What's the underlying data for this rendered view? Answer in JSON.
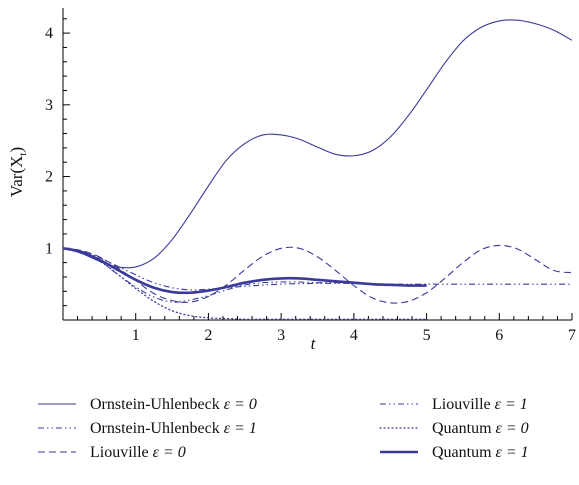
{
  "chart_data": {
    "type": "line",
    "xlabel": "t",
    "ylabel": "Var(X",
    "ylabel_sub": "t",
    "ylabel_close": ")",
    "xlim": [
      0,
      7
    ],
    "ylim": [
      0,
      4.35
    ],
    "xticks": [
      "1",
      "2",
      "3",
      "4",
      "5",
      "6",
      "7"
    ],
    "yticks": [
      "1",
      "2",
      "3",
      "4"
    ],
    "color": "#3a3a9a",
    "series": [
      {
        "name": "Ornstein-Uhlenbeck",
        "eps": "ε = 0",
        "style": "solid-thin",
        "x": [
          0,
          0.25,
          0.5,
          0.75,
          1.0,
          1.25,
          1.5,
          1.75,
          2.0,
          2.25,
          2.5,
          2.75,
          3.0,
          3.25,
          3.5,
          3.75,
          4.0,
          4.25,
          4.5,
          4.75,
          5.0,
          5.25,
          5.5,
          5.75,
          6.0,
          6.25,
          6.5,
          6.75,
          7.0
        ],
        "y": [
          1.0,
          0.93,
          0.82,
          0.74,
          0.74,
          0.86,
          1.12,
          1.48,
          1.87,
          2.23,
          2.46,
          2.58,
          2.58,
          2.52,
          2.41,
          2.31,
          2.29,
          2.36,
          2.55,
          2.85,
          3.21,
          3.58,
          3.89,
          4.08,
          4.17,
          4.18,
          4.13,
          4.04,
          3.9
        ]
      },
      {
        "name": "Ornstein-Uhlenbeck",
        "eps": "ε = 1",
        "style": "dashdotdot",
        "x": [
          0,
          0.25,
          0.5,
          0.75,
          1.0,
          1.25,
          1.5,
          1.75,
          2.0,
          2.5,
          3.0,
          3.5,
          4.0,
          4.5,
          5.0,
          5.5,
          6.0,
          6.5,
          7.0
        ],
        "y": [
          1.0,
          0.96,
          0.87,
          0.75,
          0.63,
          0.52,
          0.45,
          0.42,
          0.43,
          0.47,
          0.5,
          0.51,
          0.51,
          0.5,
          0.5,
          0.5,
          0.5,
          0.5,
          0.5
        ]
      },
      {
        "name": "Liouville",
        "eps": "ε = 0",
        "style": "dashed",
        "x": [
          0,
          0.25,
          0.5,
          0.75,
          1.0,
          1.25,
          1.5,
          1.75,
          2.0,
          2.25,
          2.5,
          2.75,
          3.0,
          3.25,
          3.5,
          3.75,
          4.0,
          4.25,
          4.5,
          4.75,
          5.0,
          5.25,
          5.5,
          5.75,
          6.0,
          6.25,
          6.5,
          6.75,
          7.0
        ],
        "y": [
          1.0,
          0.97,
          0.88,
          0.73,
          0.55,
          0.37,
          0.27,
          0.25,
          0.33,
          0.49,
          0.7,
          0.89,
          1.0,
          1.0,
          0.88,
          0.69,
          0.48,
          0.31,
          0.24,
          0.26,
          0.38,
          0.58,
          0.8,
          0.98,
          1.04,
          0.99,
          0.84,
          0.69,
          0.66
        ]
      },
      {
        "name": "Liouville",
        "eps": "ε = 1",
        "style": "dashdotdot",
        "x": [
          0,
          0.25,
          0.5,
          0.75,
          1.0,
          1.25,
          1.5,
          1.75,
          2.0,
          2.25,
          2.5,
          2.75,
          3.0,
          3.25,
          3.5,
          3.75,
          4.0,
          4.25,
          4.5,
          4.75,
          5.0
        ],
        "y": [
          1.0,
          0.95,
          0.82,
          0.64,
          0.46,
          0.32,
          0.25,
          0.28,
          0.34,
          0.42,
          0.49,
          0.52,
          0.53,
          0.53,
          0.52,
          0.52,
          0.51,
          0.5,
          0.5,
          0.49,
          0.49
        ]
      },
      {
        "name": "Quantum",
        "eps": "ε = 0",
        "style": "dotted",
        "x": [
          0,
          0.25,
          0.5,
          0.75,
          1.0,
          1.25,
          1.5,
          1.75,
          2.0,
          2.25,
          2.5,
          2.75,
          3.0,
          3.25,
          3.5,
          3.75,
          4.0,
          4.25,
          4.5,
          4.75,
          5.0
        ],
        "y": [
          1.0,
          0.96,
          0.83,
          0.64,
          0.44,
          0.26,
          0.13,
          0.06,
          0.03,
          0.02,
          0.01,
          0.01,
          0.01,
          0.01,
          0.01,
          0.01,
          0.01,
          0.01,
          0.01,
          0.01,
          0.01
        ]
      },
      {
        "name": "Quantum",
        "eps": "ε = 1",
        "style": "solid-thick",
        "x": [
          0,
          0.25,
          0.5,
          0.75,
          1.0,
          1.25,
          1.5,
          1.75,
          2.0,
          2.25,
          2.5,
          2.75,
          3.0,
          3.25,
          3.5,
          3.75,
          4.0,
          4.25,
          4.5,
          4.75,
          5.0
        ],
        "y": [
          1.0,
          0.95,
          0.84,
          0.7,
          0.56,
          0.45,
          0.39,
          0.38,
          0.41,
          0.46,
          0.52,
          0.56,
          0.58,
          0.58,
          0.56,
          0.54,
          0.52,
          0.5,
          0.49,
          0.48,
          0.48
        ]
      }
    ],
    "legend": [
      {
        "name": "Ornstein-Uhlenbeck",
        "eps": "ε = 0",
        "series": 0
      },
      {
        "name": "Liouville",
        "eps": "ε = 1",
        "series": 3
      },
      {
        "name": "Ornstein-Uhlenbeck",
        "eps": "ε = 1",
        "series": 1
      },
      {
        "name": "Quantum",
        "eps": "ε = 0",
        "series": 4
      },
      {
        "name": "Liouville",
        "eps": "ε = 0",
        "series": 2
      },
      {
        "name": "Quantum",
        "eps": "ε = 1",
        "series": 5
      }
    ]
  }
}
